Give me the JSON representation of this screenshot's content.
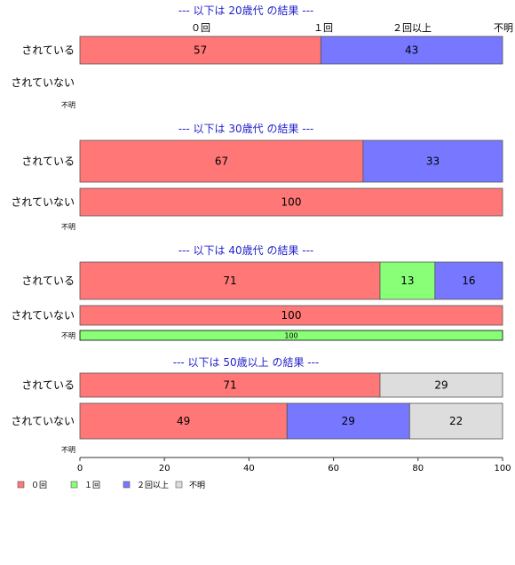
{
  "chart_data": {
    "type": "bar",
    "orientation": "horizontal",
    "stacked": true,
    "xlim": [
      0,
      100
    ],
    "x_ticks": [
      0,
      20,
      40,
      60,
      80,
      100
    ],
    "column_labels": [
      "０回",
      "１回",
      "２回以上",
      "不明"
    ],
    "legend": {
      "placement": "bottom-left",
      "items": [
        {
          "name": "０回",
          "color": "#ff7777"
        },
        {
          "name": "１回",
          "color": "#88ff77"
        },
        {
          "name": "２回以上",
          "color": "#7777ff"
        },
        {
          "name": "不明",
          "color": "#dddddd"
        }
      ]
    },
    "sections": [
      {
        "title": "--- 以下は 20歳代 の結果 ---",
        "rows": [
          {
            "label": "されている",
            "values": [
              57,
              0,
              43,
              0
            ]
          },
          {
            "label": "されていない",
            "values": [
              0,
              0,
              0,
              0
            ]
          },
          {
            "label": "不明",
            "values": [
              0,
              0,
              0,
              0
            ]
          }
        ]
      },
      {
        "title": "--- 以下は 30歳代 の結果 ---",
        "rows": [
          {
            "label": "されている",
            "values": [
              67,
              0,
              33,
              0
            ]
          },
          {
            "label": "されていない",
            "values": [
              100,
              0,
              0,
              0
            ]
          },
          {
            "label": "不明",
            "values": [
              0,
              0,
              0,
              0
            ]
          }
        ]
      },
      {
        "title": "--- 以下は 40歳代 の結果 ---",
        "rows": [
          {
            "label": "されている",
            "values": [
              71,
              13,
              16,
              0
            ]
          },
          {
            "label": "されていない",
            "values": [
              100,
              0,
              0,
              0
            ]
          },
          {
            "label": "不明",
            "values": [
              0,
              100,
              0,
              0
            ]
          }
        ]
      },
      {
        "title": "--- 以下は 50歳以上 の結果 ---",
        "rows": [
          {
            "label": "されている",
            "values": [
              71,
              0,
              0,
              29
            ]
          },
          {
            "label": "されていない",
            "values": [
              49,
              0,
              29,
              22
            ]
          },
          {
            "label": "不明",
            "values": [
              0,
              0,
              0,
              0
            ]
          }
        ]
      }
    ]
  }
}
